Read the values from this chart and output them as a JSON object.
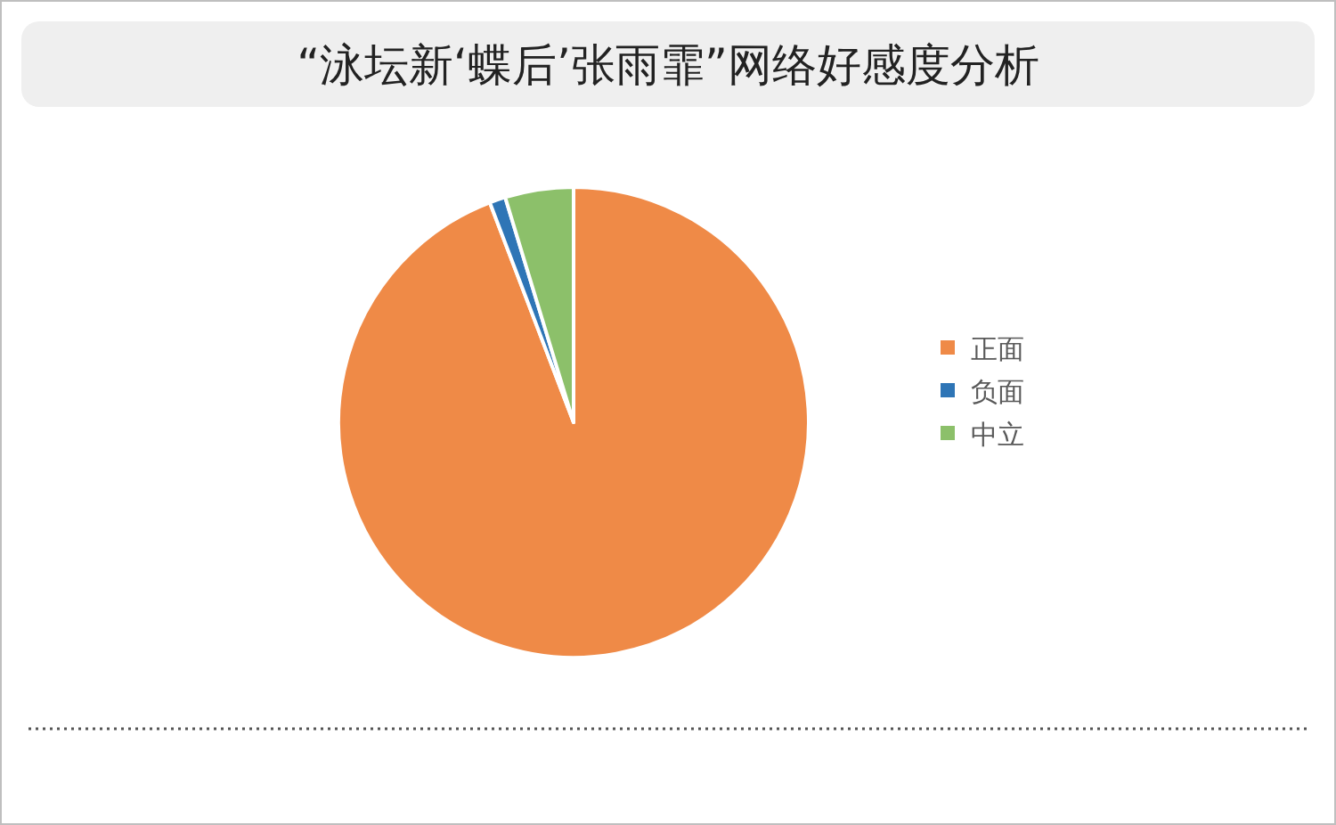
{
  "chart_data": {
    "type": "pie",
    "title": "“泳坛新‘蝶后’张雨霏”网络好感度分析",
    "categories": [
      "正面",
      "负面",
      "中立"
    ],
    "values": [
      94.2,
      1.1,
      4.7
    ],
    "colors": [
      "#ef8a47",
      "#2e75b6",
      "#8cc06a"
    ],
    "legend": "right"
  }
}
